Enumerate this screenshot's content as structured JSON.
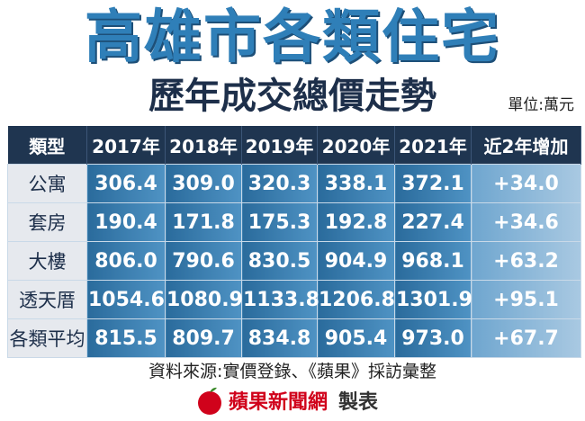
{
  "header": {
    "title": "高雄市各類住宅",
    "subtitle": "歷年成交總價走勢",
    "unit": "單位:萬元"
  },
  "table": {
    "columns": [
      "類型",
      "2017年",
      "2018年",
      "2019年",
      "2020年",
      "2021年",
      "近2年增加"
    ],
    "rows": [
      [
        "公寓",
        "306.4",
        "309.0",
        "320.3",
        "338.1",
        "372.1",
        "+34.0"
      ],
      [
        "套房",
        "190.4",
        "171.8",
        "175.3",
        "192.8",
        "227.4",
        "+34.6"
      ],
      [
        "大樓",
        "806.0",
        "790.6",
        "830.5",
        "904.9",
        "968.1",
        "+63.2"
      ],
      [
        "透天厝",
        "1054.6",
        "1080.9",
        "1133.8",
        "1206.8",
        "1301.9",
        "+95.1"
      ],
      [
        "各類平均",
        "815.5",
        "809.7",
        "834.8",
        "905.4",
        "973.0",
        "+67.7"
      ]
    ]
  },
  "footer": {
    "source": "資料來源:實價登錄、《蘋果》採訪彙整",
    "brand": "蘋果新聞網",
    "made": "製表"
  }
}
